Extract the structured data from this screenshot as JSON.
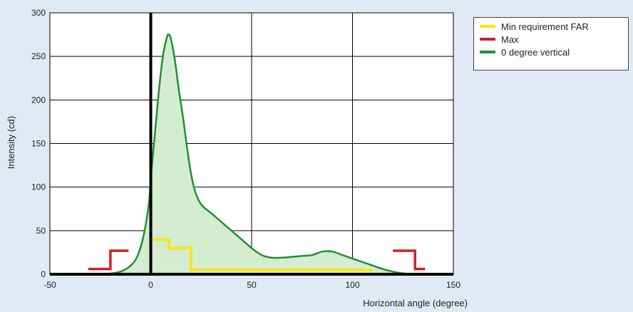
{
  "chart_data": {
    "type": "line",
    "xlabel": "Horizontal angle (degree)",
    "ylabel": "Intensity (cd)",
    "xlim": [
      -50,
      150
    ],
    "ylim": [
      0,
      300
    ],
    "xticks": [
      -50,
      0,
      50,
      100,
      150
    ],
    "yticks": [
      0,
      50,
      100,
      150,
      200,
      250,
      300
    ],
    "grid": true,
    "legend_position": "top-right outside",
    "series": [
      {
        "name": "Min requirement FAR",
        "color": "#ffe600",
        "style": "step",
        "x": [
          0,
          9,
          9,
          20,
          20,
          110
        ],
        "y": [
          40,
          40,
          30,
          30,
          5,
          5
        ]
      },
      {
        "name": "Max",
        "color": "#d41f26",
        "style": "step",
        "segments": [
          {
            "x": [
              -31,
              -20,
              -20,
              -11
            ],
            "y": [
              6,
              6,
              27,
              27
            ]
          },
          {
            "x": [
              120,
              131,
              131,
              136
            ],
            "y": [
              27,
              27,
              6,
              6
            ]
          }
        ]
      },
      {
        "name": "0 degree vertical",
        "color": "#1f9134",
        "fill": "#d4ecd0",
        "style": "curve",
        "x": [
          -25,
          -15,
          -8,
          -4,
          -1,
          0,
          2,
          4,
          6,
          8,
          9,
          10,
          12,
          14,
          16,
          18,
          20,
          22,
          25,
          30,
          35,
          40,
          45,
          50,
          55,
          60,
          65,
          70,
          75,
          80,
          85,
          90,
          95,
          100,
          105,
          110,
          115,
          120,
          125,
          130
        ],
        "y": [
          0,
          3,
          15,
          40,
          80,
          110,
          160,
          210,
          250,
          272,
          275,
          270,
          245,
          210,
          180,
          145,
          115,
          95,
          80,
          70,
          60,
          50,
          40,
          30,
          22,
          19,
          19,
          20,
          21,
          22,
          26,
          26,
          22,
          18,
          14,
          10,
          6,
          3,
          1,
          0
        ]
      }
    ]
  }
}
